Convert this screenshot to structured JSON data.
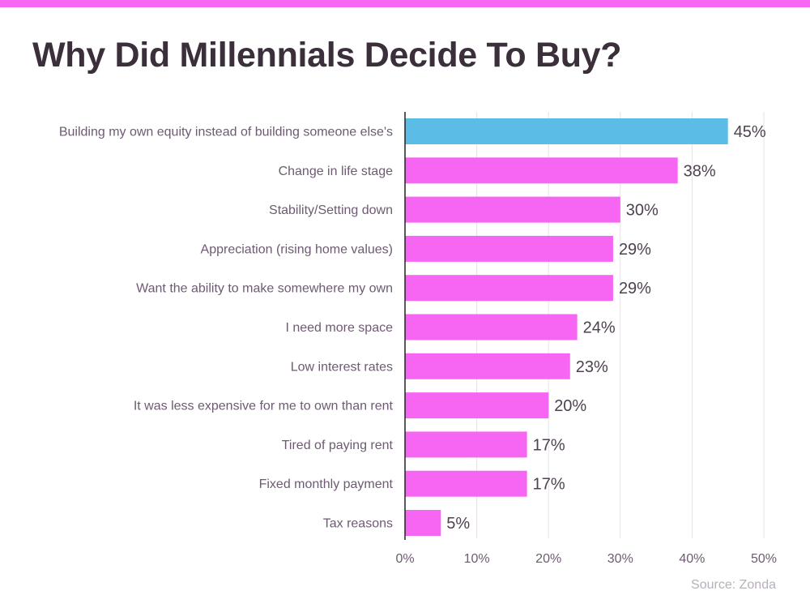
{
  "title": "Why Did Millennials Decide To Buy?",
  "source": "Source: Zonda",
  "colors": {
    "top_bar": "#f765f3",
    "bar_default": "#f765f3",
    "bar_highlight": "#5bbce6",
    "axis": "#222222",
    "grid": "#e6e1e6"
  },
  "chart_data": {
    "type": "bar",
    "orientation": "horizontal",
    "title": "Why Did Millennials Decide To Buy?",
    "categories": [
      "Building my own equity instead of building someone else's",
      "Change in life stage ",
      "Stability/Setting down",
      "Appreciation (rising home values)",
      "Want the ability to make somewhere my own",
      "I need more space",
      "Low interest rates",
      "It was less expensive for me to own than rent",
      "Tired of paying rent",
      "Fixed monthly payment",
      "Tax reasons"
    ],
    "values": [
      45,
      38,
      30,
      29,
      29,
      24,
      23,
      20,
      17,
      17,
      5
    ],
    "value_labels": [
      "45%",
      "38%",
      "30%",
      "29%",
      "29%",
      "24%",
      "23%",
      "20%",
      "17%",
      "17%",
      "5%"
    ],
    "highlight_index": 0,
    "xlim": [
      0,
      50
    ],
    "xticks": [
      0,
      10,
      20,
      30,
      40,
      50
    ],
    "xtick_labels": [
      "0%",
      "10%",
      "20%",
      "30%",
      "40%",
      "50%"
    ],
    "grid": true,
    "xlabel": "",
    "ylabel": ""
  }
}
